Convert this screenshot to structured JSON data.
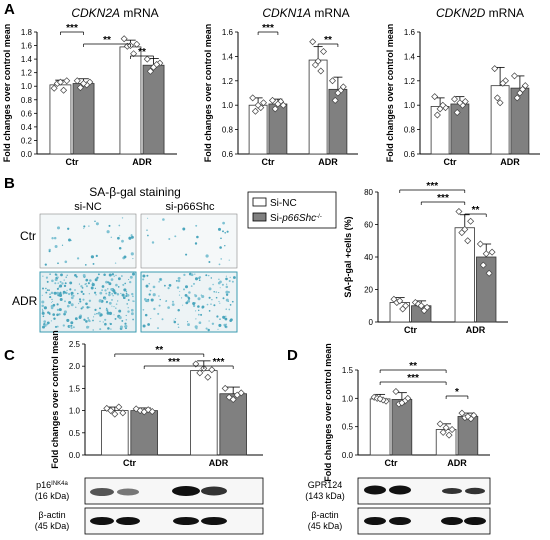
{
  "panels": {
    "A": "A",
    "B": "B",
    "C": "C",
    "D": "D"
  },
  "legend": {
    "items": [
      {
        "label": "Si-NC",
        "fill": "#ffffff"
      },
      {
        "label": "Si-p66Shc-/-",
        "fill": "#808080"
      }
    ]
  },
  "colors": {
    "control": "#ffffff",
    "knockdown": "#808080",
    "edge": "#333333"
  },
  "staining": {
    "title": "SA-β-gal staining",
    "col_labels": [
      "si-NC",
      "si-p66Shc"
    ],
    "row_labels": [
      "Ctr",
      "ADR"
    ]
  },
  "blots": {
    "C": {
      "rows": [
        {
          "label": "p16INK4a",
          "kda": "(16 kDa)"
        },
        {
          "label": "β-actin",
          "kda": "(45 kDa)"
        }
      ]
    },
    "D": {
      "rows": [
        {
          "label": "GPR124",
          "kda": "(143 kDa)"
        },
        {
          "label": "β-actin",
          "kda": "(45 kDa)"
        }
      ]
    }
  },
  "chart_data": [
    {
      "id": "A1",
      "type": "bar",
      "title": "CDKN2A mRNA",
      "ylabel": "Fold changes over control mean",
      "categories": [
        "Ctr",
        "ADR"
      ],
      "ylim": [
        0,
        1.8
      ],
      "yticks": [
        "0.0",
        "0.2",
        "0.4",
        "0.6",
        "0.8",
        "1.0",
        "1.2",
        "1.4",
        "1.6",
        "1.8"
      ],
      "series": [
        {
          "values": [
            1.02,
            1.58
          ],
          "err": [
            0.07,
            0.1
          ]
        },
        {
          "values": [
            1.04,
            1.31
          ],
          "err": [
            0.07,
            0.1
          ]
        }
      ],
      "points": [
        [
          [
            0.97,
            1.08,
            1.04,
            0.94,
            1.06
          ],
          [
            1.7,
            1.62,
            1.59,
            1.48,
            1.6
          ]
        ],
        [
          [
            1.08,
            1.06,
            0.98,
            1.02,
            1.04
          ],
          [
            1.4,
            1.34,
            1.22,
            1.32,
            1.28
          ]
        ]
      ],
      "sig": [
        "***",
        "**",
        "**"
      ]
    },
    {
      "id": "A2",
      "type": "bar",
      "title": "CDKN1A mRNA",
      "ylabel": "Fold changes over control mean",
      "categories": [
        "Ctr",
        "ADR"
      ],
      "ylim": [
        0.6,
        1.6
      ],
      "yticks": [
        "0.6",
        "0.8",
        "1.0",
        "1.2",
        "1.4",
        "1.6"
      ],
      "series": [
        {
          "values": [
            1.0,
            1.37
          ],
          "err": [
            0.06,
            0.11
          ]
        },
        {
          "values": [
            1.01,
            1.13
          ],
          "err": [
            0.04,
            0.1
          ]
        }
      ],
      "points": [
        [
          [
            1.06,
            1.02,
            0.95,
            0.98,
            1.0
          ],
          [
            1.52,
            1.44,
            1.33,
            1.28,
            1.36
          ]
        ],
        [
          [
            1.04,
            1.0,
            0.97,
            1.03,
            1.01
          ],
          [
            1.2,
            1.15,
            1.04,
            1.12,
            1.1
          ]
        ]
      ],
      "sig": [
        "***",
        "**"
      ]
    },
    {
      "id": "A3",
      "type": "bar",
      "title": "CDKN2D mRNA",
      "ylabel": "Fold changes over control mean",
      "categories": [
        "Ctr",
        "ADR"
      ],
      "ylim": [
        0.6,
        1.6
      ],
      "yticks": [
        "0.6",
        "0.8",
        "1.0",
        "1.2",
        "1.4",
        "1.6"
      ],
      "series": [
        {
          "values": [
            0.99,
            1.16
          ],
          "err": [
            0.07,
            0.15
          ]
        },
        {
          "values": [
            1.01,
            1.14
          ],
          "err": [
            0.06,
            0.1
          ]
        }
      ],
      "points": [
        [
          [
            1.07,
            0.98,
            0.92,
            1.0,
            0.97
          ],
          [
            1.3,
            1.2,
            1.06,
            1.18,
            1.02
          ]
        ],
        [
          [
            1.05,
            1.03,
            0.94,
            1.0,
            1.02
          ],
          [
            1.24,
            1.16,
            1.06,
            1.13,
            1.1
          ]
        ]
      ],
      "sig": []
    },
    {
      "id": "B",
      "type": "bar",
      "title": "",
      "ylabel": "SA-β-gal +cells (%)",
      "categories": [
        "Ctr",
        "ADR"
      ],
      "ylim": [
        0,
        80
      ],
      "yticks": [
        "0",
        "20",
        "40",
        "60",
        "80"
      ],
      "series": [
        {
          "values": [
            12,
            58
          ],
          "err": [
            3,
            8
          ]
        },
        {
          "values": [
            10,
            40
          ],
          "err": [
            3,
            8
          ]
        }
      ],
      "points": [
        [
          [
            14,
            10,
            12,
            8,
            13
          ],
          [
            68,
            62,
            55,
            50,
            57
          ]
        ],
        [
          [
            12,
            9,
            11,
            7,
            10
          ],
          [
            48,
            43,
            35,
            30,
            42
          ]
        ]
      ],
      "sig": [
        "***",
        "***",
        "**"
      ]
    },
    {
      "id": "C",
      "type": "bar",
      "title": "",
      "ylabel": "Fold changes over control mean",
      "categories": [
        "Ctr",
        "ADR"
      ],
      "ylim": [
        0,
        2.5
      ],
      "yticks": [
        "0.0",
        "0.5",
        "1.0",
        "1.5",
        "2.0",
        "2.5"
      ],
      "series": [
        {
          "values": [
            1.0,
            1.9
          ],
          "err": [
            0.08,
            0.22
          ]
        },
        {
          "values": [
            1.0,
            1.38
          ],
          "err": [
            0.06,
            0.15
          ]
        }
      ],
      "points": [
        [
          [
            1.05,
            0.95,
            1.0,
            1.08,
            0.92
          ],
          [
            2.05,
            1.92,
            1.85,
            1.75,
            1.95
          ]
        ],
        [
          [
            1.04,
            0.98,
            1.0,
            1.02,
            0.97
          ],
          [
            1.5,
            1.4,
            1.3,
            1.35,
            1.25
          ]
        ]
      ],
      "sig": [
        "**",
        "***",
        "***"
      ]
    },
    {
      "id": "D",
      "type": "bar",
      "title": "",
      "ylabel": "Fold changes over control mean",
      "categories": [
        "Ctr",
        "ADR"
      ],
      "ylim": [
        0,
        1.5
      ],
      "yticks": [
        "0.0",
        "0.5",
        "1.0",
        "1.5"
      ],
      "series": [
        {
          "values": [
            0.99,
            0.45
          ],
          "err": [
            0.08,
            0.1
          ]
        },
        {
          "values": [
            0.98,
            0.68
          ],
          "err": [
            0.12,
            0.06
          ]
        }
      ],
      "points": [
        [
          [
            1.02,
            0.95,
            1.0,
            0.97,
            0.99
          ],
          [
            0.55,
            0.45,
            0.4,
            0.35,
            0.48
          ]
        ],
        [
          [
            1.12,
            1.0,
            0.9,
            0.95,
            0.92
          ],
          [
            0.74,
            0.7,
            0.66,
            0.64,
            0.68
          ]
        ]
      ],
      "sig": [
        "**",
        "***",
        "*"
      ]
    }
  ]
}
